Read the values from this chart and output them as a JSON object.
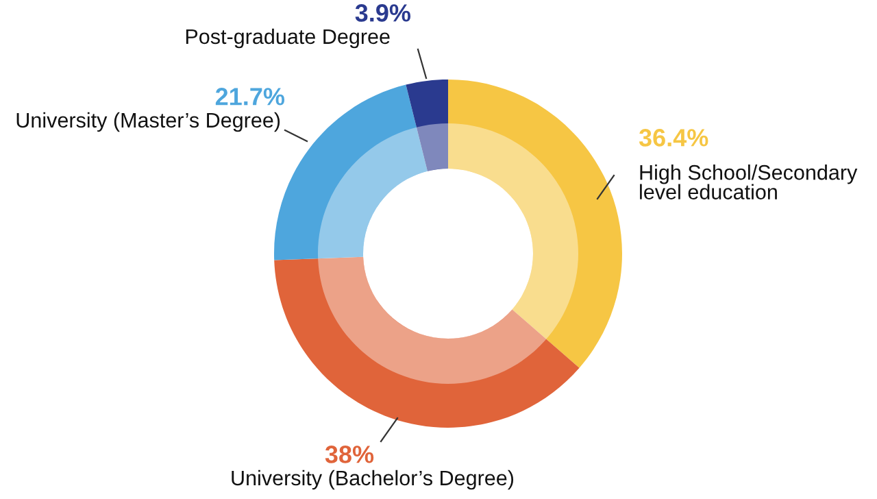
{
  "chart_data": {
    "type": "donut",
    "categories": [
      "High School/Secondary\nlevel education",
      "University (Bachelor’s Degree)",
      "University (Master’s Degree)",
      "Post-graduate Degree"
    ],
    "values": [
      36.4,
      38,
      21.7,
      3.9
    ],
    "colors": [
      "#f6c644",
      "#e0643a",
      "#4ea6dd",
      "#2a3a8f"
    ],
    "value_labels": [
      "36.4%",
      "38%",
      "21.7%",
      "3.9%"
    ],
    "legend": false
  }
}
